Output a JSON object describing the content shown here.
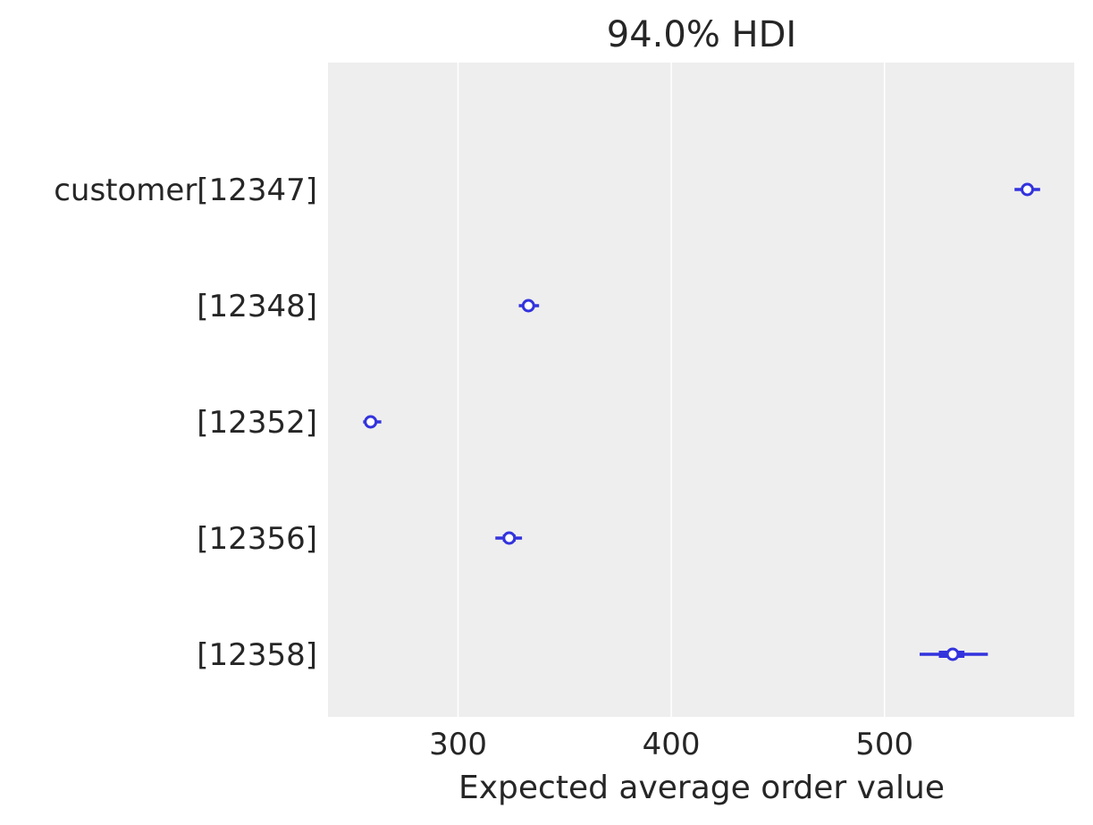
{
  "chart_data": {
    "type": "forest",
    "title": "94.0% HDI",
    "xlabel": "Expected average order value",
    "ylabel": "",
    "xlim": [
      239,
      589
    ],
    "xticks": [
      300,
      400,
      500
    ],
    "grid": true,
    "colors": {
      "background": "#eeeeee",
      "grid": "#ffffff",
      "marker": "#3333dd",
      "text": "#262626"
    },
    "categories": [
      "customer[12347]",
      "[12348]",
      "[12352]",
      "[12356]",
      "[12358]"
    ],
    "series": [
      {
        "points": [
          {
            "label": "customer[12347]",
            "mean": 567,
            "hdi94": [
              561,
              573
            ],
            "iqr": [
              564.5,
              569.5
            ]
          },
          {
            "label": "[12348]",
            "mean": 333,
            "hdi94": [
              328.5,
              338
            ],
            "iqr": [
              331,
              335.5
            ]
          },
          {
            "label": "[12352]",
            "mean": 259,
            "hdi94": [
              255.5,
              264
            ],
            "iqr": [
              257.5,
              261
            ]
          },
          {
            "label": "[12356]",
            "mean": 324,
            "hdi94": [
              317.5,
              330
            ],
            "iqr": [
              321,
              327
            ]
          },
          {
            "label": "[12358]",
            "mean": 532,
            "hdi94": [
              516.5,
              548.5
            ],
            "iqr": [
              525.5,
              537.5
            ]
          }
        ]
      }
    ]
  }
}
